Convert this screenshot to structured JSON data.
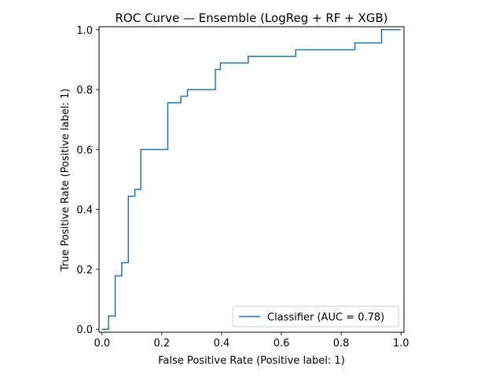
{
  "chart_data": {
    "type": "line",
    "title": "ROC Curve — Ensemble (LogReg + RF + XGB)",
    "xlabel": "False Positive Rate (Positive label: 1)",
    "ylabel": "True Positive Rate (Positive label: 1)",
    "xlim": [
      -0.01,
      1.01
    ],
    "ylim": [
      -0.01,
      1.01
    ],
    "x_ticks": [
      0.0,
      0.2,
      0.4,
      0.6,
      0.8,
      1.0
    ],
    "y_ticks": [
      0.0,
      0.2,
      0.4,
      0.6,
      0.8,
      1.0
    ],
    "x_tick_labels": [
      "0.0",
      "0.2",
      "0.4",
      "0.6",
      "0.8",
      "1.0"
    ],
    "y_tick_labels": [
      "0.0",
      "0.2",
      "0.4",
      "0.6",
      "0.8",
      "1.0"
    ],
    "grid": false,
    "legend_placement": "lower-right",
    "series": [
      {
        "name": "Classifier (AUC = 0.78)",
        "color": "#1f77b4",
        "x": [
          0.0,
          0.022,
          0.022,
          0.044,
          0.044,
          0.066,
          0.066,
          0.088,
          0.088,
          0.11,
          0.11,
          0.13,
          0.13,
          0.22,
          0.22,
          0.264,
          0.264,
          0.286,
          0.286,
          0.379,
          0.379,
          0.396,
          0.396,
          0.489,
          0.489,
          0.648,
          0.648,
          0.846,
          0.846,
          0.935,
          0.935,
          1.0
        ],
        "y": [
          0.0,
          0.0,
          0.044,
          0.044,
          0.178,
          0.178,
          0.222,
          0.222,
          0.444,
          0.444,
          0.467,
          0.467,
          0.6,
          0.6,
          0.756,
          0.756,
          0.778,
          0.778,
          0.8,
          0.8,
          0.867,
          0.867,
          0.889,
          0.889,
          0.911,
          0.911,
          0.933,
          0.933,
          0.956,
          0.956,
          1.0,
          1.0
        ]
      }
    ]
  }
}
